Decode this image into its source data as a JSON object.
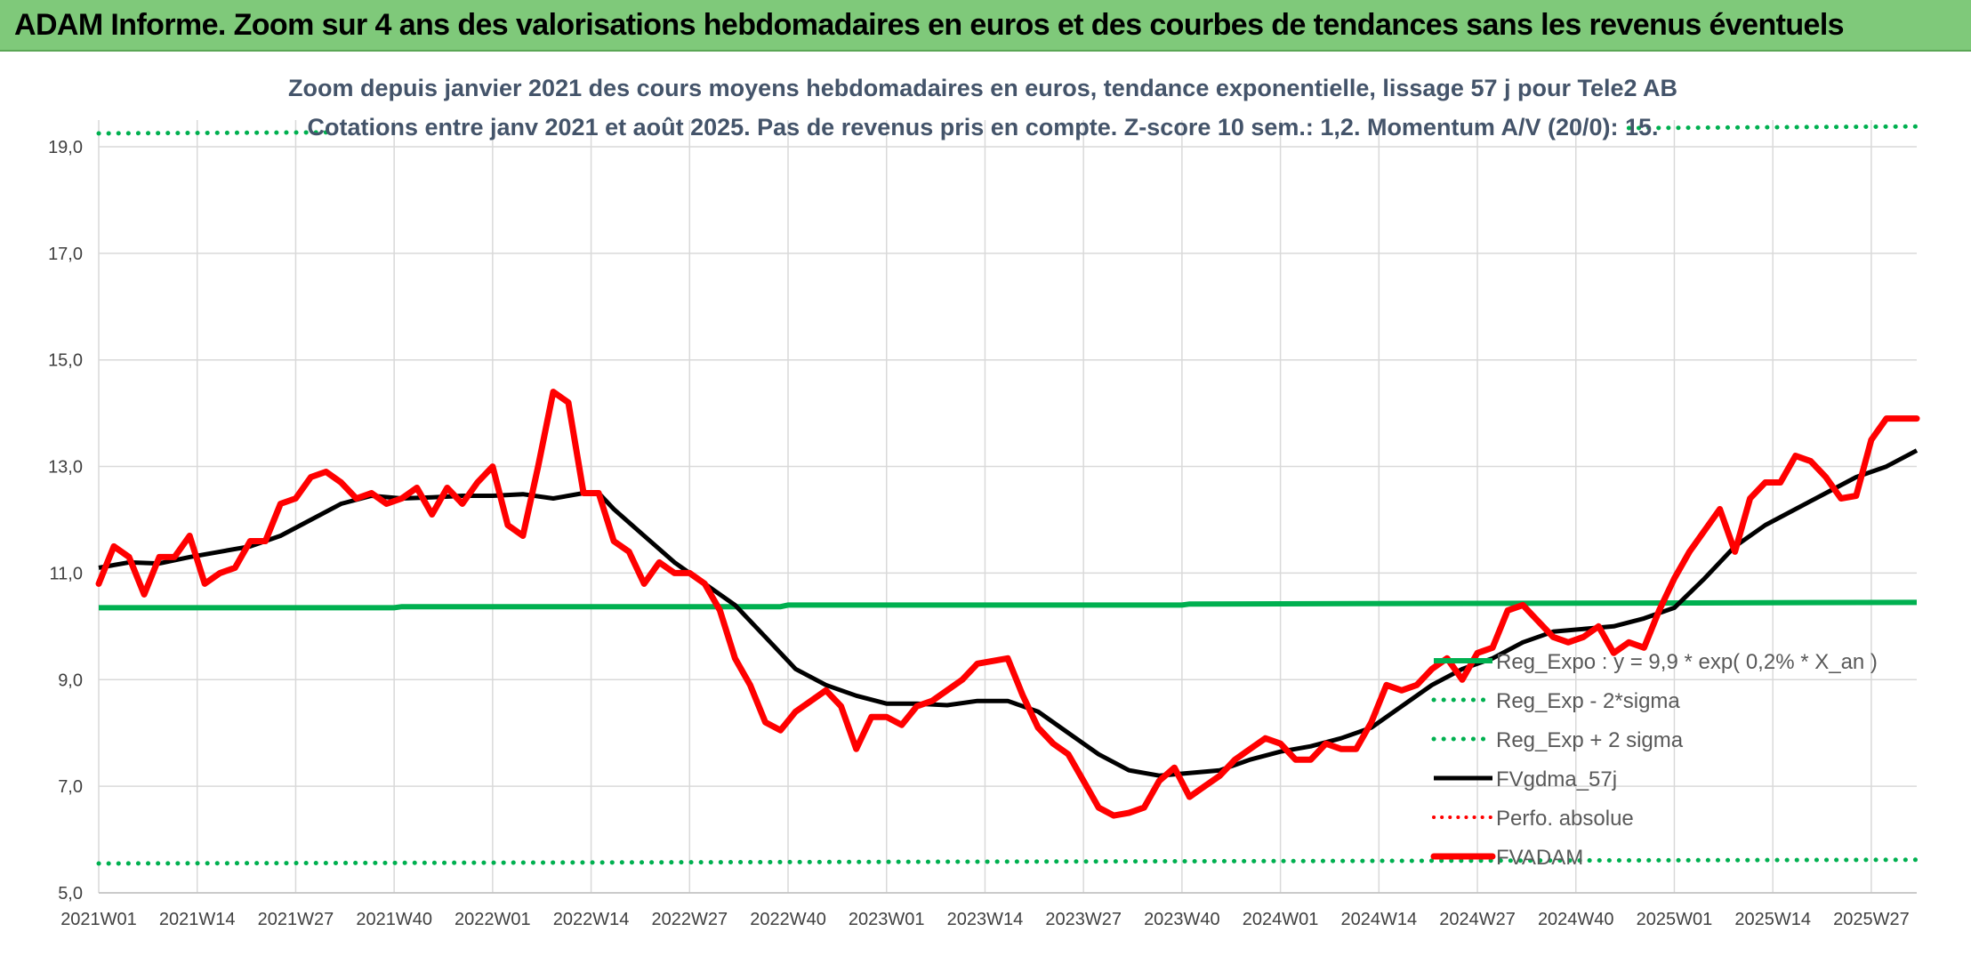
{
  "header": {
    "title": "ADAM Informe. Zoom sur 4 ans des valorisations hebdomadaires en euros et des courbes de tendances sans les revenus éventuels"
  },
  "chart_data": {
    "type": "line",
    "title": "Zoom depuis janvier 2021 des cours moyens hebdomadaires en euros, tendance exponentielle, lissage 57 j pour Tele2 AB",
    "subtitle": "Cotations entre janv 2021 et août 2025. Pas de revenus pris en compte. Z-score 10 sem.: 1,2. Momentum A/V (20/0): 15.",
    "xlabel": "",
    "ylabel": "",
    "ylim": [
      5.0,
      19.5
    ],
    "yticks": [
      "5,0",
      "7,0",
      "9,0",
      "11,0",
      "13,0",
      "15,0",
      "17,0",
      "19,0"
    ],
    "ytick_values": [
      5,
      7,
      9,
      11,
      13,
      15,
      17,
      19
    ],
    "xlim": [
      0,
      240
    ],
    "xticks": [
      "2021W01",
      "2021W14",
      "2021W27",
      "2021W40",
      "2022W01",
      "2022W14",
      "2022W27",
      "2022W40",
      "2023W01",
      "2023W14",
      "2023W27",
      "2023W40",
      "2024W01",
      "2024W14",
      "2024W27",
      "2024W40",
      "2025W01",
      "2025W14",
      "2025W27"
    ],
    "xtick_values": [
      0,
      13,
      26,
      39,
      52,
      65,
      78,
      91,
      104,
      117,
      130,
      143,
      156,
      169,
      182,
      195,
      208,
      221,
      234
    ],
    "grid": true,
    "legend_position": "bottom-right",
    "colors": {
      "reg_expo": "#00b050",
      "sigma": "#00b050",
      "fvgdma": "#000000",
      "perfo": "#ff0000",
      "fvadam": "#ff0000",
      "grid": "#d9d9d9"
    },
    "series": [
      {
        "name": "Reg_Expo : y = 9,9 * exp( 0,2% *  X_an )",
        "style": "solid-green",
        "x": [
          0,
          39,
          40,
          90,
          91,
          143,
          144,
          240
        ],
        "values": [
          10.35,
          10.35,
          10.37,
          10.37,
          10.4,
          10.4,
          10.42,
          10.45
        ]
      },
      {
        "name": "Reg_Exp - 2*sigma",
        "style": "dotted-green",
        "x": [
          0,
          240
        ],
        "values": [
          5.55,
          5.62
        ]
      },
      {
        "name": "Reg_Exp + 2 sigma",
        "style": "dotted-green",
        "x": [
          0,
          31,
          202,
          240
        ],
        "values": [
          19.25,
          19.27,
          19.35,
          19.38
        ]
      },
      {
        "name": "FVgdma_57j",
        "style": "solid-black",
        "x": [
          0,
          4,
          8,
          12,
          16,
          20,
          24,
          28,
          32,
          36,
          40,
          44,
          48,
          52,
          56,
          60,
          64,
          66,
          68,
          72,
          76,
          80,
          84,
          88,
          92,
          96,
          100,
          104,
          108,
          112,
          116,
          120,
          124,
          128,
          132,
          136,
          140,
          144,
          148,
          152,
          156,
          160,
          164,
          168,
          172,
          176,
          180,
          184,
          188,
          192,
          196,
          200,
          204,
          208,
          212,
          216,
          220,
          224,
          228,
          232,
          236,
          240
        ],
        "values": [
          11.1,
          11.2,
          11.18,
          11.3,
          11.4,
          11.5,
          11.7,
          12.0,
          12.3,
          12.45,
          12.4,
          12.42,
          12.45,
          12.45,
          12.48,
          12.4,
          12.5,
          12.5,
          12.2,
          11.7,
          11.2,
          10.8,
          10.4,
          9.8,
          9.2,
          8.9,
          8.7,
          8.55,
          8.55,
          8.52,
          8.6,
          8.6,
          8.4,
          8.0,
          7.6,
          7.3,
          7.2,
          7.25,
          7.3,
          7.5,
          7.65,
          7.75,
          7.9,
          8.1,
          8.5,
          8.9,
          9.2,
          9.4,
          9.7,
          9.9,
          9.95,
          10.0,
          10.15,
          10.35,
          10.9,
          11.5,
          11.9,
          12.2,
          12.5,
          12.8,
          13.0,
          13.3
        ]
      },
      {
        "name": "Perfo. absolue",
        "style": "dotted-red",
        "x": [],
        "values": []
      },
      {
        "name": "FVADAM",
        "style": "solid-red",
        "x": [
          0,
          2,
          4,
          6,
          8,
          10,
          12,
          14,
          16,
          18,
          20,
          22,
          24,
          26,
          28,
          30,
          32,
          34,
          36,
          38,
          40,
          42,
          44,
          46,
          48,
          50,
          52,
          54,
          56,
          58,
          60,
          62,
          64,
          66,
          68,
          70,
          72,
          74,
          76,
          78,
          80,
          82,
          84,
          86,
          88,
          90,
          92,
          94,
          96,
          98,
          100,
          102,
          104,
          106,
          108,
          110,
          112,
          114,
          116,
          118,
          120,
          122,
          124,
          126,
          128,
          130,
          132,
          134,
          136,
          138,
          140,
          142,
          144,
          146,
          148,
          150,
          152,
          154,
          156,
          158,
          160,
          162,
          164,
          166,
          168,
          170,
          172,
          174,
          176,
          178,
          180,
          182,
          184,
          186,
          188,
          190,
          192,
          194,
          196,
          198,
          200,
          202,
          204,
          206,
          208,
          210,
          212,
          214,
          216,
          218,
          220,
          222,
          224,
          226,
          228,
          230,
          232,
          234,
          236,
          238,
          240
        ],
        "values": [
          10.8,
          11.5,
          11.3,
          10.6,
          11.3,
          11.3,
          11.7,
          10.8,
          11.0,
          11.1,
          11.6,
          11.6,
          12.3,
          12.4,
          12.8,
          12.9,
          12.7,
          12.4,
          12.5,
          12.3,
          12.4,
          12.6,
          12.1,
          12.6,
          12.3,
          12.7,
          13.0,
          11.9,
          11.7,
          13.0,
          14.4,
          14.2,
          12.5,
          12.5,
          11.6,
          11.4,
          10.8,
          11.2,
          11.0,
          11.0,
          10.8,
          10.3,
          9.4,
          8.9,
          8.2,
          8.05,
          8.4,
          8.6,
          8.8,
          8.5,
          7.7,
          8.3,
          8.3,
          8.15,
          8.5,
          8.6,
          8.8,
          9.0,
          9.3,
          9.35,
          9.4,
          8.7,
          8.1,
          7.8,
          7.6,
          7.1,
          6.6,
          6.45,
          6.5,
          6.6,
          7.1,
          7.35,
          6.8,
          7.0,
          7.2,
          7.5,
          7.7,
          7.9,
          7.8,
          7.5,
          7.5,
          7.8,
          7.7,
          7.7,
          8.2,
          8.9,
          8.8,
          8.9,
          9.2,
          9.4,
          9.0,
          9.5,
          9.6,
          10.3,
          10.4,
          10.1,
          9.8,
          9.7,
          9.8,
          10.0,
          9.5,
          9.7,
          9.6,
          10.3,
          10.9,
          11.4,
          11.8,
          12.2,
          11.4,
          12.4,
          12.7,
          12.7,
          13.2,
          13.1,
          12.8,
          12.4,
          12.45,
          13.5,
          13.9,
          13.9,
          13.9
        ]
      }
    ],
    "legend": [
      "Reg_Expo : y = 9,9 * exp( 0,2% *  X_an )",
      "Reg_Exp - 2*sigma",
      "Reg_Exp + 2 sigma",
      "FVgdma_57j",
      "Perfo. absolue",
      "FVADAM"
    ]
  }
}
